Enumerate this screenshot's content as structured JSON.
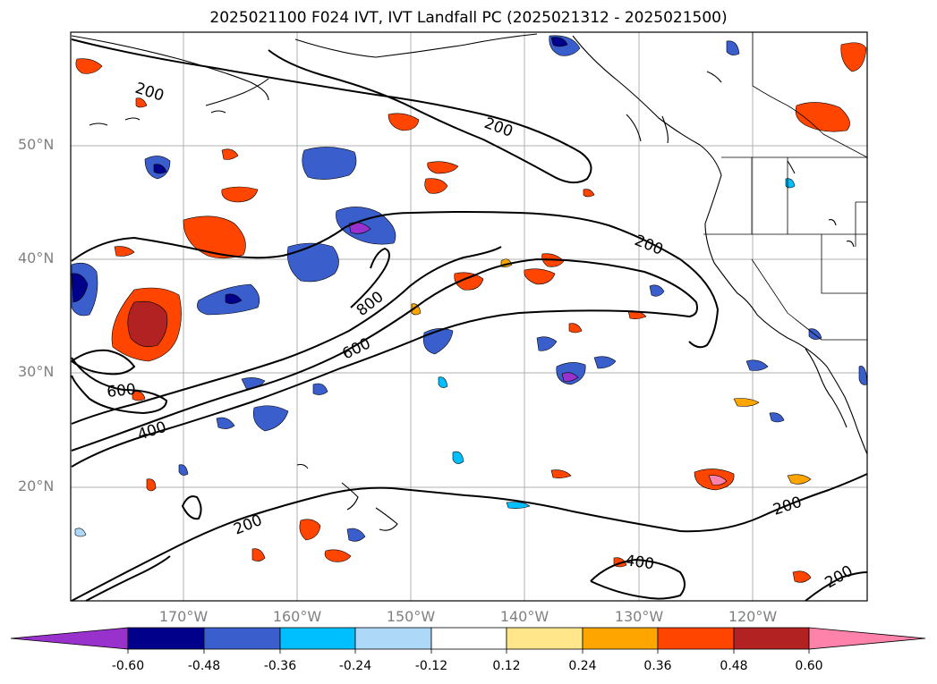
{
  "title": "2025021100 F024 IVT, IVT Landfall PC (2025021312 - 2025021500)",
  "latitude_labels": [
    "50°N",
    "40°N",
    "30°N",
    "20°N"
  ],
  "longitude_labels": [
    "170°W",
    "160°W",
    "150°W",
    "140°W",
    "130°W",
    "120°W"
  ],
  "contour_labels": [
    "200",
    "200",
    "200",
    "800",
    "600",
    "600",
    "400",
    "200",
    "200",
    "400",
    "200"
  ],
  "colorbar": {
    "tick_labels": [
      "-0.60",
      "-0.48",
      "-0.36",
      "-0.24",
      "-0.12",
      "0.12",
      "0.24",
      "0.36",
      "0.48",
      "0.60"
    ],
    "colors": [
      "#9932cc",
      "#00008b",
      "#3a5fcd",
      "#00bfff",
      "#add8f7",
      "#ffffff",
      "#ffe68a",
      "#ffa500",
      "#ff4500",
      "#b22222",
      "#ff82ab"
    ]
  },
  "colors": {
    "contour": "#000000",
    "grid": "#b0b0b0",
    "coast": "#000000"
  }
}
